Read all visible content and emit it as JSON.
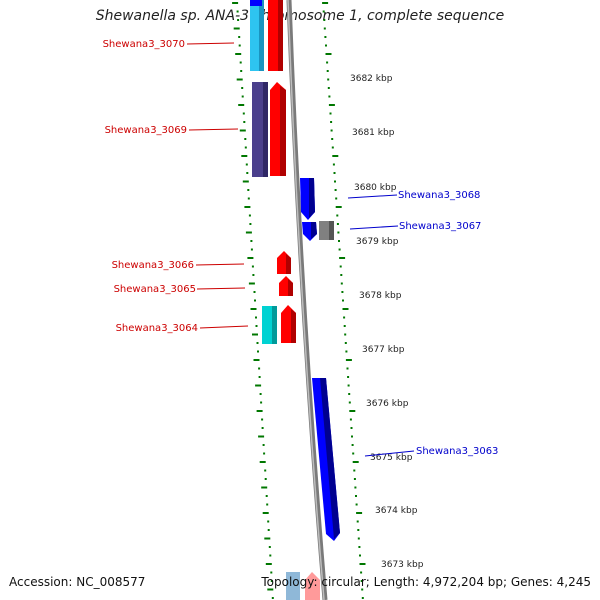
{
  "title": "Shewanella sp. ANA-3 chromosome 1, complete sequence",
  "accession_text": "Accession: NC_008577",
  "summary_text": "Topology: circular; Length: 4,972,204 bp; Genes: 4,245",
  "colors": {
    "forward_gene": "#ff0000",
    "forward_gene_shade": "#b00000",
    "reverse_gene": "#0000ff",
    "reverse_gene_shade": "#000090",
    "forward_cds_cyan": "#00e0e0",
    "forward_cds_lightblue": "#2ec4f0",
    "forward_cds_purple": "#4a3f8c",
    "reverse_cds_gray": "#808080",
    "label_forward": "#cc0000",
    "label_reverse": "#0000cc",
    "tick": "#007700",
    "backbone": "#888888"
  },
  "axis_labels": [
    "3682 kbp",
    "3681 kbp",
    "3680 kbp",
    "3679 kbp",
    "3678 kbp",
    "3677 kbp",
    "3676 kbp",
    "3675 kbp",
    "3674 kbp",
    "3673 kbp"
  ],
  "forward_genes": [
    {
      "label": "Shewana3_3070"
    },
    {
      "label": "Shewana3_3069"
    },
    {
      "label": "Shewana3_3066"
    },
    {
      "label": "Shewana3_3065"
    },
    {
      "label": "Shewana3_3064"
    }
  ],
  "reverse_genes": [
    {
      "label": "Shewana3_3068"
    },
    {
      "label": "Shewana3_3067"
    },
    {
      "label": "Shewana3_3063"
    }
  ]
}
